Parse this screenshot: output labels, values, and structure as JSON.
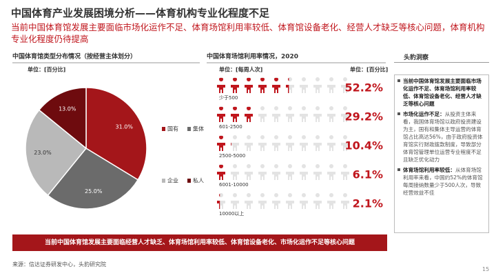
{
  "header": {
    "title": "中国体育产业发展困境分析——体育机构专业化程度不足",
    "subtitle": "当前中国体育馆发展主要面临市场化运作不足、体育场馆利用率较低、体育馆设备老化、经营人才缺乏等核心问题，体育机构专业化程度仍待提高"
  },
  "chart_data": [
    {
      "type": "pie",
      "title": "中国体育馆类型分布情况（按经营主体划分）",
      "unit": "单位：[百分比]",
      "categories": [
        "国有",
        "集体",
        "企业",
        "私人"
      ],
      "values": [
        31.0,
        25.0,
        23.0,
        13.0
      ],
      "value_labels": [
        "31.0%",
        "25.0%",
        "23.0%",
        "13.0%"
      ],
      "colors": [
        "#a4161a",
        "#6b6b6b",
        "#b9b9b9",
        "#6e0b0e"
      ]
    },
    {
      "type": "pictogram",
      "title": "中国体育场馆利用率情况，2020",
      "unit": "单位：[每周人次]",
      "value_unit": "单位：[百分比]",
      "categories": [
        "少于500",
        "601-2500",
        "2500-5000",
        "6001-10000",
        "10000以上"
      ],
      "values": [
        52.2,
        29.2,
        10.4,
        6.1,
        2.1
      ],
      "value_labels": [
        "52.2%",
        "29.2%",
        "10.4%",
        "6.1%",
        "2.1%"
      ],
      "color": "#c0161d",
      "empty_color": "#e3e3e3"
    }
  ],
  "sidebar": {
    "title": "头豹洞察",
    "items": [
      {
        "bold": "当前中国体育馆发展主要面临市场化运作不足、体育场馆利用率较低、体育馆设备老化、经营人才缺乏等核心问题",
        "text": ""
      },
      {
        "bold": "市场化运作不足：",
        "text": "从投资主体来看，我国体育场馆以政府投资建设为主，国有和集体主导运营的体育馆占比高达56%，由于政府投资体育馆实行财政拨款制度，导致部分体育馆管理单位运营专业程度不足且缺乏优化动力"
      },
      {
        "bold": "体育场馆利用率较低：",
        "text": "从体育场馆利用率来看，中国约52%的体育馆每周接纳数量少于500人次，导致经营效益不佳"
      }
    ]
  },
  "banner": "当前中国体育馆发展主要面临经营人才缺乏、体育场馆利用率较低、体育馆设备老化、市场化运作不足等核心问题",
  "footer": {
    "source": "来源：信达证券研发中心，头豹研究院",
    "page": "15"
  }
}
